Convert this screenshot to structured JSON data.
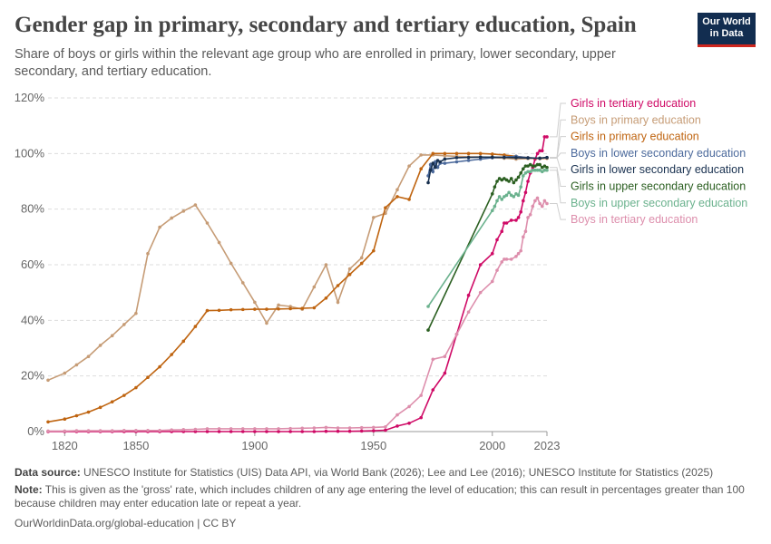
{
  "header": {
    "title": "Gender gap in primary, secondary and tertiary education, Spain",
    "subtitle": "Share of boys or girls within the relevant age group who are enrolled in primary, lower secondary, upper secondary, and tertiary education.",
    "logo_line1": "Our World",
    "logo_line2": "in Data"
  },
  "footer": {
    "source_label": "Data source:",
    "source_text": "UNESCO Institute for Statistics (UIS) Data API, via World Bank (2026); Lee and Lee (2016); UNESCO Institute for Statistics (2025)",
    "note_label": "Note:",
    "note_text": "This is given as the 'gross' rate, which includes children of any age entering the level of education; this can result in percentages greater than 100 because children may enter education late or repeat a year.",
    "url": "OurWorldinData.org/global-education | CC BY"
  },
  "colors": {
    "girls_tertiary": "#cf0a66",
    "boys_primary": "#c69c76",
    "girls_primary": "#bf6410",
    "boys_lower_secondary": "#4c6a9c",
    "girls_lower_secondary": "#18304f",
    "girls_upper_secondary": "#2b5f21",
    "boys_upper_secondary": "#6bb28e",
    "boys_tertiary": "#dd8eac"
  },
  "chart_data": {
    "type": "line",
    "title": "Gender gap in primary, secondary and tertiary education, Spain",
    "xlabel": "",
    "ylabel": "",
    "xlim": [
      1813,
      2023
    ],
    "ylim": [
      0,
      120
    ],
    "x_ticks": [
      1820,
      1850,
      1900,
      1950,
      2000,
      2023
    ],
    "y_ticks": [
      "0%",
      "20%",
      "40%",
      "60%",
      "80%",
      "100%",
      "120%"
    ],
    "y_tick_values": [
      0,
      20,
      40,
      60,
      80,
      100,
      120
    ],
    "grid": "horizontal dashed",
    "legend_placement": "right",
    "series": [
      {
        "name": "Girls in tertiary education",
        "color": "#cf0a66",
        "x": [
          1813,
          1820,
          1825,
          1830,
          1835,
          1840,
          1845,
          1850,
          1855,
          1860,
          1865,
          1870,
          1875,
          1880,
          1885,
          1890,
          1895,
          1900,
          1905,
          1910,
          1915,
          1920,
          1925,
          1930,
          1935,
          1940,
          1945,
          1950,
          1955,
          1960,
          1965,
          1970,
          1975,
          1980,
          1985,
          1990,
          1995,
          2000,
          2002,
          2004,
          2005,
          2006,
          2008,
          2010,
          2011,
          2012,
          2013,
          2014,
          2015,
          2016,
          2017,
          2018,
          2019,
          2020,
          2021,
          2022,
          2023
        ],
        "y": [
          0,
          0,
          0,
          0,
          0,
          0,
          0,
          0,
          0,
          0,
          0,
          0,
          0,
          0,
          0,
          0,
          0,
          0,
          0,
          0,
          0,
          0,
          0,
          0.1,
          0.1,
          0.1,
          0.2,
          0.3,
          0.5,
          2,
          3,
          5,
          15,
          21,
          35,
          49,
          60,
          64,
          69,
          72,
          75,
          75,
          76,
          76,
          77,
          79,
          83,
          86,
          90,
          93,
          95,
          98,
          100,
          101,
          101,
          106,
          106
        ]
      },
      {
        "name": "Boys in primary education",
        "color": "#c69c76",
        "x": [
          1813,
          1820,
          1825,
          1830,
          1835,
          1840,
          1845,
          1850,
          1855,
          1860,
          1865,
          1870,
          1875,
          1880,
          1885,
          1890,
          1895,
          1900,
          1905,
          1910,
          1915,
          1920,
          1925,
          1930,
          1935,
          1940,
          1945,
          1950,
          1955,
          1960,
          1965,
          1970,
          1975,
          1980,
          1985,
          1990,
          1995,
          2000,
          2005,
          2010,
          2015,
          2020,
          2023
        ],
        "y": [
          18.5,
          21,
          24,
          27,
          31,
          34.5,
          38.5,
          42.5,
          64,
          73.5,
          76.8,
          79.3,
          81.5,
          75,
          68,
          60.5,
          53.5,
          46.5,
          39,
          45.5,
          45,
          44,
          52,
          60,
          46.5,
          58.5,
          62.5,
          77,
          78.5,
          87,
          95.5,
          99.5,
          99.5,
          99.2,
          99,
          98.8,
          98.8,
          98.5,
          98.3,
          98,
          98.2,
          98.4,
          98.5
        ]
      },
      {
        "name": "Girls in primary education",
        "color": "#bf6410",
        "x": [
          1813,
          1820,
          1825,
          1830,
          1835,
          1840,
          1845,
          1850,
          1855,
          1860,
          1865,
          1870,
          1875,
          1880,
          1885,
          1890,
          1895,
          1900,
          1905,
          1910,
          1915,
          1920,
          1925,
          1930,
          1935,
          1940,
          1945,
          1950,
          1955,
          1960,
          1965,
          1970,
          1975,
          1980,
          1985,
          1990,
          1995,
          2000,
          2005,
          2010,
          2015,
          2020,
          2023
        ],
        "y": [
          3.5,
          4.5,
          5.7,
          7,
          8.7,
          10.7,
          13,
          15.8,
          19.5,
          23.3,
          27.7,
          32.5,
          37.8,
          43.5,
          43.6,
          43.8,
          43.9,
          44,
          44,
          44.1,
          44.2,
          44.3,
          44.5,
          48,
          52.5,
          56.5,
          60.5,
          65,
          80.5,
          84.5,
          83.5,
          94.5,
          100,
          100,
          100,
          100,
          100,
          99.8,
          99.5,
          99,
          98.5,
          98.2,
          98.3
        ]
      },
      {
        "name": "Boys in lower secondary education",
        "color": "#4c6a9c",
        "x": [
          1973,
          1974,
          1975,
          1976,
          1977,
          1978,
          1980,
          1985,
          1990,
          1995,
          2000,
          2005,
          2010,
          2015,
          2020,
          2023
        ],
        "y": [
          92,
          96,
          93.5,
          97,
          95,
          96.5,
          96.5,
          97,
          97.5,
          98,
          98.5,
          98.7,
          99,
          98.5,
          98.3,
          98.5
        ]
      },
      {
        "name": "Girls in lower secondary education",
        "color": "#18304f",
        "x": [
          1973,
          1974,
          1975,
          1976,
          1977,
          1978,
          1980,
          1985,
          1990,
          1995,
          2000,
          2005,
          2010,
          2015,
          2020,
          2023
        ],
        "y": [
          89.5,
          94,
          96.5,
          95,
          97.5,
          97,
          98,
          98.5,
          98.6,
          98.7,
          98.7,
          98.6,
          98.5,
          98.4,
          98.3,
          98.6
        ]
      },
      {
        "name": "Girls in upper secondary education",
        "color": "#2b5f21",
        "x": [
          1973,
          2000,
          2001,
          2002,
          2003,
          2004,
          2005,
          2006,
          2007,
          2008,
          2009,
          2010,
          2011,
          2012,
          2013,
          2014,
          2015,
          2016,
          2017,
          2018,
          2019,
          2020,
          2021,
          2022,
          2023
        ],
        "y": [
          36.5,
          85.5,
          88,
          90,
          91,
          90.5,
          91,
          90.5,
          90,
          91,
          89.5,
          90.5,
          91.5,
          93,
          94.5,
          95.5,
          95.5,
          96,
          95.5,
          95.5,
          96,
          96,
          95,
          95.5,
          95
        ]
      },
      {
        "name": "Boys in upper secondary education",
        "color": "#6bb28e",
        "x": [
          1973,
          2000,
          2001,
          2002,
          2003,
          2004,
          2005,
          2006,
          2007,
          2008,
          2009,
          2010,
          2011,
          2012,
          2013,
          2014,
          2015,
          2016,
          2017,
          2018,
          2019,
          2020,
          2021,
          2022,
          2023
        ],
        "y": [
          45,
          79.5,
          81,
          83,
          84.5,
          83.5,
          84.5,
          85,
          86,
          85,
          84.5,
          85.5,
          85,
          88,
          92,
          93,
          93.5,
          93.5,
          94,
          94,
          94,
          94,
          93.5,
          94,
          94
        ]
      },
      {
        "name": "Boys in tertiary education",
        "color": "#dd8eac",
        "x": [
          1813,
          1820,
          1825,
          1830,
          1835,
          1840,
          1845,
          1850,
          1855,
          1860,
          1865,
          1870,
          1875,
          1880,
          1885,
          1890,
          1895,
          1900,
          1905,
          1910,
          1915,
          1920,
          1925,
          1930,
          1935,
          1940,
          1945,
          1950,
          1955,
          1960,
          1965,
          1970,
          1975,
          1980,
          1985,
          1990,
          1995,
          2000,
          2002,
          2004,
          2005,
          2006,
          2008,
          2010,
          2011,
          2012,
          2013,
          2014,
          2015,
          2016,
          2017,
          2018,
          2019,
          2020,
          2021,
          2022,
          2023
        ],
        "y": [
          0.2,
          0.2,
          0.3,
          0.3,
          0.3,
          0.3,
          0.4,
          0.4,
          0.4,
          0.4,
          0.6,
          0.7,
          0.8,
          1,
          1,
          1,
          1,
          1,
          1,
          1,
          1.1,
          1.2,
          1.3,
          1.5,
          1.3,
          1.3,
          1.4,
          1.5,
          1.7,
          6,
          9,
          13,
          26,
          27,
          35,
          43,
          50,
          54,
          58,
          61,
          62,
          62,
          62,
          63,
          64,
          65,
          70,
          72,
          77,
          78,
          81,
          83,
          84,
          82,
          81,
          83,
          82
        ]
      }
    ]
  }
}
